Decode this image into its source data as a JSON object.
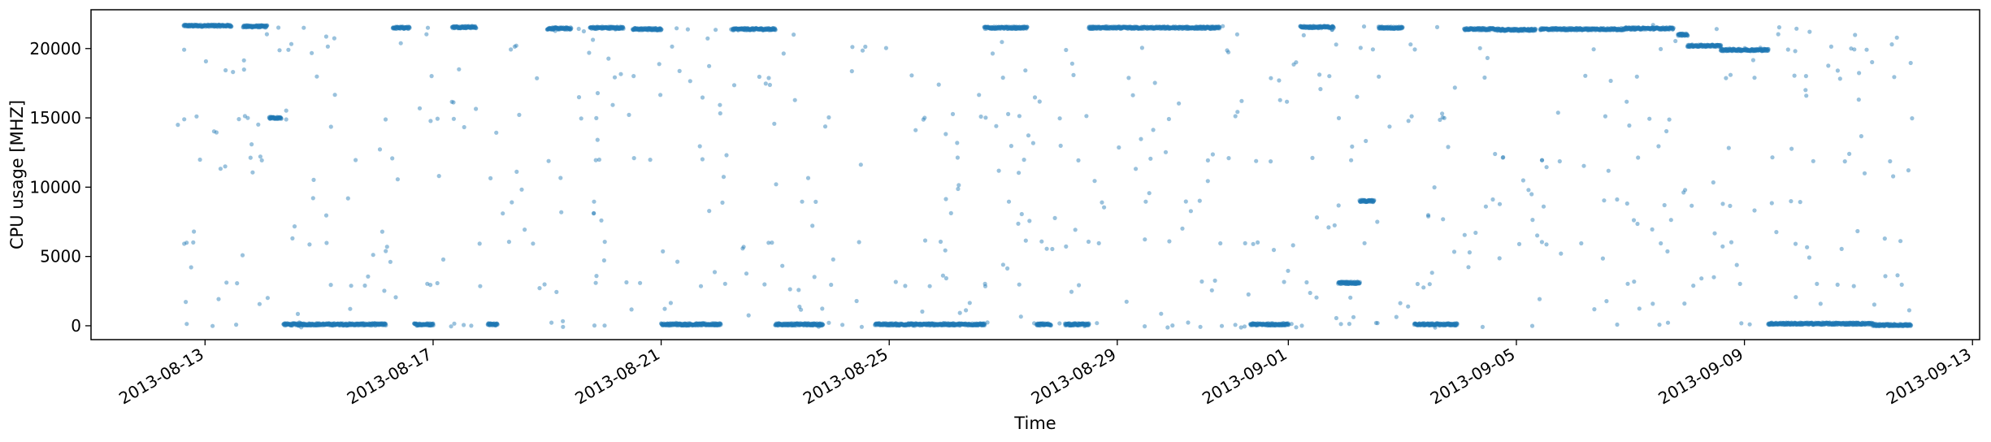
{
  "chart_data": {
    "type": "scatter",
    "title": "",
    "xlabel": "Time",
    "ylabel": "CPU usage [MHZ]",
    "xlim": [
      "2013-08-11T00:00",
      "2013-09-13T03:00"
    ],
    "ylim": [
      -1000,
      22800
    ],
    "x_ticks": [
      "2013-08-13",
      "2013-08-17",
      "2013-08-21",
      "2013-08-25",
      "2013-08-29",
      "2013-09-01",
      "2013-09-05",
      "2013-09-09",
      "2013-09-13"
    ],
    "y_ticks": [
      0,
      5000,
      10000,
      15000,
      20000
    ],
    "grid": false,
    "legend": "none",
    "color": "#1f77b4",
    "marker_alpha": 0.45,
    "series": [
      {
        "segments": [
          [
            "2013-08-12T15:00",
            "2013-08-13T11:00",
            21650
          ],
          [
            "2013-08-13T16:00",
            "2013-08-14T02:00",
            21600
          ],
          [
            "2013-08-14T03:00",
            "2013-08-14T08:00",
            15000
          ],
          [
            "2013-08-14T09:00",
            "2013-08-16T04:00",
            100
          ],
          [
            "2013-08-16T07:00",
            "2013-08-16T14:00",
            21500
          ],
          [
            "2013-08-16T16:00",
            "2013-08-17T00:00",
            100
          ],
          [
            "2013-08-17T08:00",
            "2013-08-17T18:00",
            21550
          ],
          [
            "2013-08-17T23:00",
            "2013-08-18T03:00",
            100
          ],
          [
            "2013-08-19T00:00",
            "2013-08-19T10:00",
            21450
          ],
          [
            "2013-08-19T18:00",
            "2013-08-20T08:00",
            21500
          ],
          [
            "2013-08-20T12:00",
            "2013-08-21T00:00",
            21400
          ],
          [
            "2013-08-21T00:00",
            "2013-08-22T01:00",
            100
          ],
          [
            "2013-08-22T06:00",
            "2013-08-23T00:00",
            21400
          ],
          [
            "2013-08-23T00:00",
            "2013-08-23T20:00",
            100
          ],
          [
            "2013-08-24T18:00",
            "2013-08-26T16:00",
            100
          ],
          [
            "2013-08-26T16:00",
            "2013-08-27T10:00",
            21500
          ],
          [
            "2013-08-27T14:00",
            "2013-08-27T20:00",
            100
          ],
          [
            "2013-08-28T02:00",
            "2013-08-28T12:00",
            100
          ],
          [
            "2013-08-28T12:00",
            "2013-08-30T19:00",
            21500
          ],
          [
            "2013-08-31T08:00",
            "2013-09-01T00:00",
            100
          ],
          [
            "2013-09-01T05:00",
            "2013-09-01T19:00",
            21550
          ],
          [
            "2013-09-01T21:00",
            "2013-09-02T06:00",
            3100
          ],
          [
            "2013-09-02T06:00",
            "2013-09-02T12:00",
            9000
          ],
          [
            "2013-09-02T14:00",
            "2013-09-03T00:00",
            21500
          ],
          [
            "2013-09-03T05:00",
            "2013-09-03T23:00",
            100
          ],
          [
            "2013-09-04T02:00",
            "2013-09-04T16:00",
            21400
          ],
          [
            "2013-09-04T16:00",
            "2013-09-05T08:00",
            21350
          ],
          [
            "2013-09-05T10:00",
            "2013-09-06T22:00",
            21400
          ],
          [
            "2013-09-06T22:00",
            "2013-09-07T18:00",
            21450
          ],
          [
            "2013-09-07T20:00",
            "2013-09-08T00:00",
            21000
          ],
          [
            "2013-09-08T00:00",
            "2013-09-08T14:00",
            20200
          ],
          [
            "2013-09-08T14:00",
            "2013-09-09T10:00",
            19900
          ],
          [
            "2013-09-09T10:00",
            "2013-09-11T06:00",
            150
          ],
          [
            "2013-09-11T06:00",
            "2013-09-11T22:00",
            50
          ]
        ],
        "levels": [
          0,
          100,
          3000,
          6000,
          9000,
          12000,
          15000,
          18000,
          20000,
          21500
        ],
        "scatter_start": "2013-08-12T12:00",
        "scatter_end": "2013-09-11T23:00",
        "scatter_points_per_day": 20
      }
    ]
  }
}
